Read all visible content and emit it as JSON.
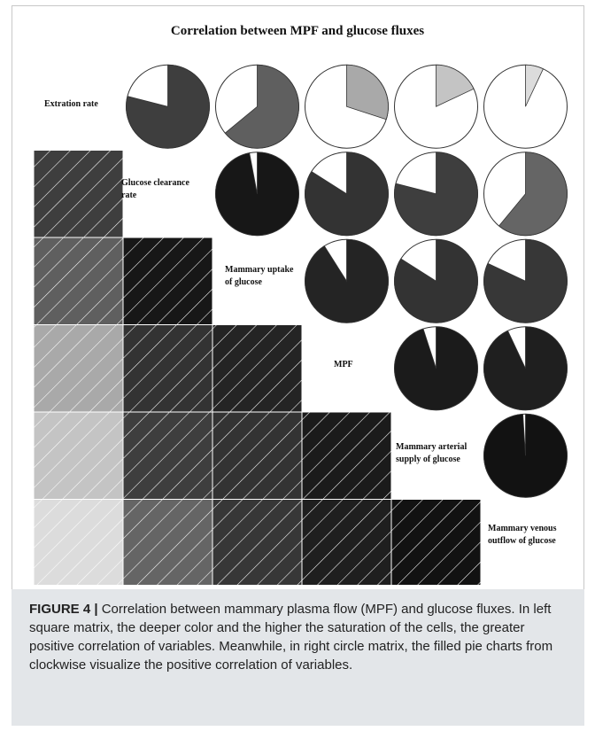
{
  "chart_data": {
    "type": "correlation_matrix",
    "title": "Correlation between MPF and glucose fluxes",
    "variables": [
      "Extration rate",
      "Glucose clearance rate",
      "Mammary uptake of glucose",
      "MPF",
      "Mammary arterial supply of glucose",
      "Mammary venous outflow of glucose"
    ],
    "variable_label_lines": [
      [
        "Extration rate"
      ],
      [
        "Glucose clearance",
        "rate"
      ],
      [
        "Mammary uptake",
        "of glucose"
      ],
      [
        "MPF"
      ],
      [
        "Mammary arterial",
        "supply of glucose"
      ],
      [
        "Mammary venous",
        "outflow of glucose"
      ]
    ],
    "lower_triangle": "shaded squares with diagonal hatching (darker = stronger positive correlation)",
    "upper_triangle": "filled pie charts (filled fraction clockwise = positive correlation)",
    "correlations": [
      {
        "var1": "Extration rate",
        "var2": "Glucose clearance rate",
        "value": 0.79
      },
      {
        "var1": "Extration rate",
        "var2": "Mammary uptake of glucose",
        "value": 0.64
      },
      {
        "var1": "Extration rate",
        "var2": "MPF",
        "value": 0.3
      },
      {
        "var1": "Extration rate",
        "var2": "Mammary arterial supply of glucose",
        "value": 0.18
      },
      {
        "var1": "Extration rate",
        "var2": "Mammary venous outflow of glucose",
        "value": 0.07
      },
      {
        "var1": "Glucose clearance rate",
        "var2": "Mammary uptake of glucose",
        "value": 0.97
      },
      {
        "var1": "Glucose clearance rate",
        "var2": "MPF",
        "value": 0.84
      },
      {
        "var1": "Glucose clearance rate",
        "var2": "Mammary arterial supply of glucose",
        "value": 0.79
      },
      {
        "var1": "Glucose clearance rate",
        "var2": "Mammary venous outflow of glucose",
        "value": 0.61
      },
      {
        "var1": "Mammary uptake of glucose",
        "var2": "MPF",
        "value": 0.91
      },
      {
        "var1": "Mammary uptake of glucose",
        "var2": "Mammary arterial supply of glucose",
        "value": 0.84
      },
      {
        "var1": "Mammary uptake of glucose",
        "var2": "Mammary venous outflow of glucose",
        "value": 0.82
      },
      {
        "var1": "MPF",
        "var2": "Mammary arterial supply of glucose",
        "value": 0.95
      },
      {
        "var1": "MPF",
        "var2": "Mammary venous outflow of glucose",
        "value": 0.93
      },
      {
        "var1": "Mammary arterial supply of glucose",
        "var2": "Mammary venous outflow of glucose",
        "value": 0.99
      }
    ]
  },
  "caption": {
    "figure_label": "FIGURE 4 |",
    "text": " Correlation between mammary plasma flow (MPF) and glucose fluxes. In left square matrix, the deeper color and the higher the saturation of the cells, the greater positive correlation of variables. Meanwhile, in right circle matrix, the filled pie charts from clockwise visualize the positive correlation of variables."
  }
}
